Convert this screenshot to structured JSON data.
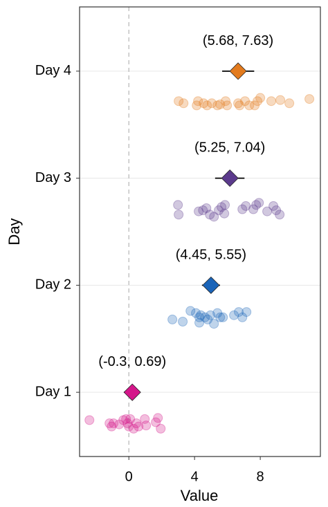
{
  "chart_data": {
    "type": "interval",
    "x_label": "Value",
    "y_label": "Day",
    "categories": [
      "Day 1",
      "Day 2",
      "Day 3",
      "Day 4"
    ],
    "xlim": [
      -3,
      11.66
    ],
    "xticks": [
      0,
      4,
      8
    ],
    "ylim": [
      0.4,
      4.6
    ],
    "grid": true,
    "vline": 0,
    "groups": [
      {
        "color": "#d4168a",
        "mean": 0.21,
        "ci": [
          -0.3,
          0.69
        ],
        "ci_label": "(-0.3, 0.69)",
        "points": {
          "x": [
            -2.4,
            -1.18,
            -1.05,
            -0.93,
            -0.34,
            -0.17,
            0,
            0.08,
            0.29,
            0.46,
            0.97,
            1.05,
            1.64,
            1.77,
            1.94,
            -0.08,
            -0.59,
            0.59
          ],
          "y": [
            0.74,
            0.71,
            0.68,
            0.71,
            0.74,
            0.75,
            0.68,
            0.75,
            0.66,
            0.71,
            0.75,
            0.69,
            0.72,
            0.76,
            0.66,
            0.71,
            0.7,
            0.68
          ]
        }
      },
      {
        "color": "#1a64b8",
        "mean": 5.0,
        "ci": [
          4.45,
          5.55
        ],
        "ci_label": "(4.45, 5.55)",
        "points": {
          "x": [
            2.65,
            3.28,
            3.75,
            4.08,
            4.29,
            4.38,
            4.63,
            4.8,
            4.97,
            5.18,
            5.39,
            5.56,
            5.73,
            6.4,
            6.69,
            6.91,
            7.16,
            4.29
          ],
          "y": [
            1.68,
            1.66,
            1.76,
            1.74,
            1.65,
            1.72,
            1.7,
            1.68,
            1.72,
            1.64,
            1.74,
            1.7,
            1.7,
            1.72,
            1.75,
            1.7,
            1.75,
            1.7
          ]
        }
      },
      {
        "color": "#5b3a8c",
        "mean": 6.15,
        "ci": [
          5.25,
          7.04
        ],
        "ci_label": "(5.25, 7.04)",
        "points": {
          "x": [
            2.99,
            3.03,
            4.25,
            4.51,
            4.72,
            4.93,
            5.18,
            5.47,
            5.64,
            5.85,
            5.81,
            6.91,
            7.12,
            7.58,
            7.75,
            7.92,
            8.42,
            8.8,
            8.97,
            9.18
          ],
          "y": [
            2.75,
            2.66,
            2.69,
            2.7,
            2.72,
            2.66,
            2.64,
            2.7,
            2.73,
            2.75,
            2.67,
            2.71,
            2.74,
            2.71,
            2.75,
            2.77,
            2.69,
            2.74,
            2.7,
            2.66
          ]
        }
      },
      {
        "color": "#e37b1e",
        "mean": 6.65,
        "ci": [
          5.68,
          7.63
        ],
        "ci_label": "(5.68, 7.63)",
        "points": {
          "x": [
            3.03,
            3.33,
            4.21,
            4.13,
            4.55,
            4.76,
            5.05,
            5.39,
            5.56,
            5.98,
            6.74,
            6.65,
            7.07,
            7.33,
            7.66,
            7.83,
            8.0,
            8.67,
            9.22,
            9.77,
            10.99,
            5.89
          ],
          "y": [
            3.72,
            3.7,
            3.72,
            3.68,
            3.7,
            3.68,
            3.7,
            3.68,
            3.69,
            3.68,
            3.68,
            3.7,
            3.72,
            3.68,
            3.68,
            3.72,
            3.75,
            3.72,
            3.73,
            3.7,
            3.74,
            3.72
          ]
        }
      }
    ]
  }
}
